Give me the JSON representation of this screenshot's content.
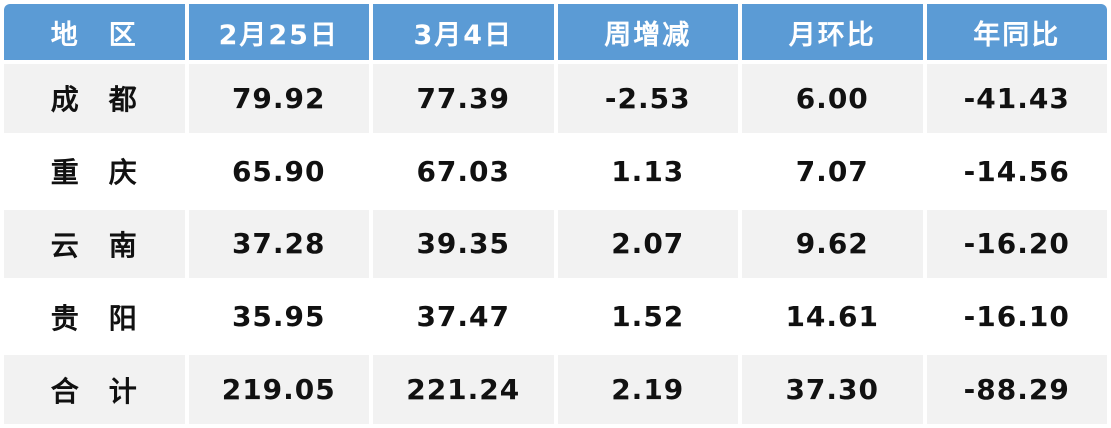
{
  "colors": {
    "header_bg": "#5B9BD5",
    "header_text": "#FFFFFF",
    "stripe_bg": "#F2F2F2",
    "row_bg": "#FFFFFF",
    "positive_value": "#FF0000",
    "negative_value": "#00B050",
    "neutral_value": "#111111"
  },
  "table": {
    "headers": [
      "地　区",
      "2月25日",
      "3月4日",
      "周增减",
      "月环比",
      "年同比"
    ],
    "rows": [
      {
        "region": "成　都",
        "cells": [
          {
            "v": "79.92",
            "c": "black"
          },
          {
            "v": "77.39",
            "c": "black"
          },
          {
            "v": "-2.53",
            "c": "green"
          },
          {
            "v": "6.00",
            "c": "red"
          },
          {
            "v": "-41.43",
            "c": "green"
          }
        ]
      },
      {
        "region": "重　庆",
        "cells": [
          {
            "v": "65.90",
            "c": "black"
          },
          {
            "v": "67.03",
            "c": "black"
          },
          {
            "v": "1.13",
            "c": "red"
          },
          {
            "v": "7.07",
            "c": "red"
          },
          {
            "v": "-14.56",
            "c": "green"
          }
        ]
      },
      {
        "region": "云　南",
        "cells": [
          {
            "v": "37.28",
            "c": "black"
          },
          {
            "v": "39.35",
            "c": "black"
          },
          {
            "v": "2.07",
            "c": "red"
          },
          {
            "v": "9.62",
            "c": "red"
          },
          {
            "v": "-16.20",
            "c": "green"
          }
        ]
      },
      {
        "region": "贵　阳",
        "cells": [
          {
            "v": "35.95",
            "c": "black"
          },
          {
            "v": "37.47",
            "c": "black"
          },
          {
            "v": "1.52",
            "c": "red"
          },
          {
            "v": "14.61",
            "c": "red"
          },
          {
            "v": "-16.10",
            "c": "green"
          }
        ]
      },
      {
        "region": "合　计",
        "cells": [
          {
            "v": "219.05",
            "c": "black"
          },
          {
            "v": "221.24",
            "c": "black"
          },
          {
            "v": "2.19",
            "c": "red"
          },
          {
            "v": "37.30",
            "c": "red"
          },
          {
            "v": "-88.29",
            "c": "green"
          }
        ]
      }
    ]
  }
}
